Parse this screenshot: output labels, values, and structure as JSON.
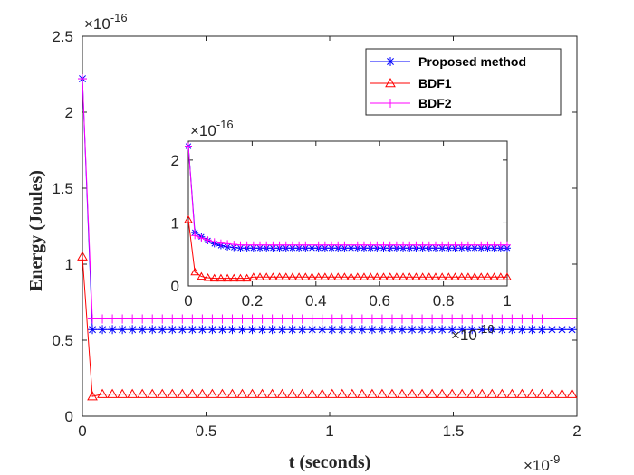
{
  "chart_data": [
    {
      "type": "line",
      "title": "",
      "xlabel": "t (seconds)",
      "ylabel": "Energy (Joules)",
      "x_exponent_label": "×10",
      "x_exponent_power": "-9",
      "y_exponent_label": "×10",
      "y_exponent_power": "-16",
      "xlim": [
        0,
        2
      ],
      "ylim": [
        0,
        2.5
      ],
      "xticks": [
        "0",
        "0.5",
        "1",
        "1.5",
        "2"
      ],
      "yticks": [
        "0",
        "0.5",
        "1",
        "1.5",
        "2",
        "2.5"
      ],
      "xtick_values": [
        0,
        0.5,
        1,
        1.5,
        2
      ],
      "ytick_values": [
        0,
        0.5,
        1,
        1.5,
        2,
        2.5
      ],
      "legend_position": "top-right",
      "grid": false,
      "series": [
        {
          "name": "Proposed method",
          "color": "#0000ff",
          "marker": "asterisk",
          "x_start": 0,
          "x_end": 1.98,
          "points": 50,
          "values_head": [
            2.22,
            0.57
          ],
          "value_tail": 0.57
        },
        {
          "name": "BDF1",
          "color": "#ff0000",
          "marker": "triangle",
          "x_start": 0,
          "x_end": 1.98,
          "points": 50,
          "values_head": [
            1.05,
            0.13,
            0.145
          ],
          "value_tail": 0.145
        },
        {
          "name": "BDF2",
          "color": "#ff00ff",
          "marker": "plus",
          "x_start": 0,
          "x_end": 1.98,
          "points": 50,
          "values_head": [
            2.22,
            0.64
          ],
          "value_tail": 0.64
        }
      ]
    },
    {
      "type": "line",
      "title": "",
      "xlabel": "",
      "ylabel": "",
      "x_exponent_label": "×10",
      "x_exponent_power": "-10",
      "y_exponent_label": "×10",
      "y_exponent_power": "-16",
      "xlim": [
        0,
        1
      ],
      "ylim": [
        0,
        2.3
      ],
      "xticks": [
        "0",
        "0.2",
        "0.4",
        "0.6",
        "0.8",
        "1"
      ],
      "yticks": [
        "0",
        "1",
        "2"
      ],
      "xtick_values": [
        0,
        0.2,
        0.4,
        0.6,
        0.8,
        1
      ],
      "ytick_values": [
        0,
        1,
        2
      ],
      "grid": false,
      "series": [
        {
          "name": "Proposed method",
          "color": "#0000ff",
          "marker": "asterisk",
          "x_start": 0,
          "x_end": 1,
          "points": 50,
          "values_head": [
            2.22,
            0.85,
            0.78,
            0.72,
            0.67,
            0.64,
            0.62,
            0.61
          ],
          "value_tail": 0.6
        },
        {
          "name": "BDF1",
          "color": "#ff0000",
          "marker": "triangle",
          "x_start": 0,
          "x_end": 1,
          "points": 50,
          "values_head": [
            1.05,
            0.22,
            0.15,
            0.13,
            0.12,
            0.12,
            0.12,
            0.12,
            0.12,
            0.12
          ],
          "value_tail": 0.14
        },
        {
          "name": "BDF2",
          "color": "#ff00ff",
          "marker": "plus",
          "x_start": 0,
          "x_end": 1,
          "points": 50,
          "values_head": [
            2.22,
            0.8,
            0.76,
            0.73,
            0.7,
            0.68,
            0.67,
            0.66
          ],
          "value_tail": 0.65
        }
      ]
    }
  ]
}
